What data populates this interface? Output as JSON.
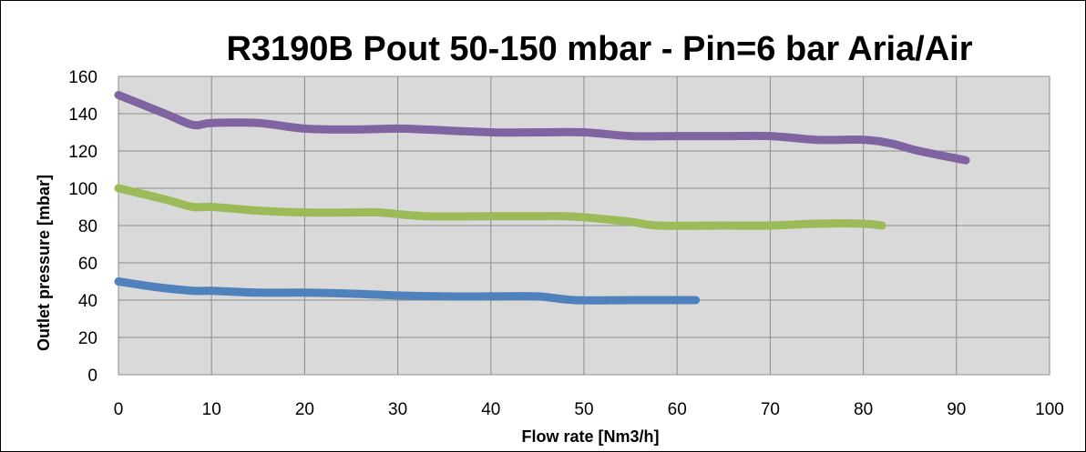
{
  "chart_data": {
    "type": "line",
    "title": "R3190B Pout 50-150 mbar - Pin=6 bar Aria/Air",
    "xlabel": "Flow rate [Nm3/h]",
    "ylabel": "Outlet pressure [mbar]",
    "xlim": [
      0,
      100
    ],
    "ylim": [
      0,
      160
    ],
    "x_ticks": [
      "0",
      "10",
      "20",
      "30",
      "40",
      "50",
      "60",
      "70",
      "80",
      "90",
      "100"
    ],
    "y_ticks": [
      "0",
      "20",
      "40",
      "60",
      "80",
      "100",
      "120",
      "140",
      "160"
    ],
    "grid": true,
    "legend": "none",
    "colors": {
      "plot_background": "#d9d9d9",
      "grid": "#8c8c8c",
      "border": "#000000"
    },
    "series": [
      {
        "color": "#8064a2",
        "points": [
          [
            0,
            150
          ],
          [
            5,
            140
          ],
          [
            8,
            134
          ],
          [
            10,
            135
          ],
          [
            15,
            135
          ],
          [
            20,
            132
          ],
          [
            25,
            131.5
          ],
          [
            30,
            132
          ],
          [
            33,
            131.5
          ],
          [
            40,
            130
          ],
          [
            45,
            130
          ],
          [
            50,
            130
          ],
          [
            55,
            128
          ],
          [
            60,
            128
          ],
          [
            65,
            128
          ],
          [
            70,
            128
          ],
          [
            75,
            126
          ],
          [
            80,
            126
          ],
          [
            83,
            124
          ],
          [
            86,
            120
          ],
          [
            91,
            115
          ]
        ]
      },
      {
        "color": "#9bbb59",
        "points": [
          [
            0,
            100
          ],
          [
            5,
            94
          ],
          [
            8,
            90
          ],
          [
            10,
            90
          ],
          [
            15,
            88
          ],
          [
            20,
            87
          ],
          [
            25,
            87
          ],
          [
            28,
            87
          ],
          [
            33,
            85
          ],
          [
            40,
            85
          ],
          [
            45,
            85
          ],
          [
            48,
            85
          ],
          [
            51,
            84
          ],
          [
            55,
            82
          ],
          [
            58,
            80
          ],
          [
            65,
            80
          ],
          [
            70,
            80
          ],
          [
            75,
            81
          ],
          [
            80,
            81
          ],
          [
            82,
            80
          ]
        ]
      },
      {
        "color": "#4f81bd",
        "points": [
          [
            0,
            50
          ],
          [
            4,
            47
          ],
          [
            8,
            45
          ],
          [
            10,
            45
          ],
          [
            15,
            44
          ],
          [
            20,
            44
          ],
          [
            25,
            43.5
          ],
          [
            30,
            42.5
          ],
          [
            35,
            42
          ],
          [
            40,
            42
          ],
          [
            45,
            42
          ],
          [
            49,
            40
          ],
          [
            55,
            40
          ],
          [
            60,
            40
          ],
          [
            62,
            40
          ]
        ]
      }
    ]
  }
}
